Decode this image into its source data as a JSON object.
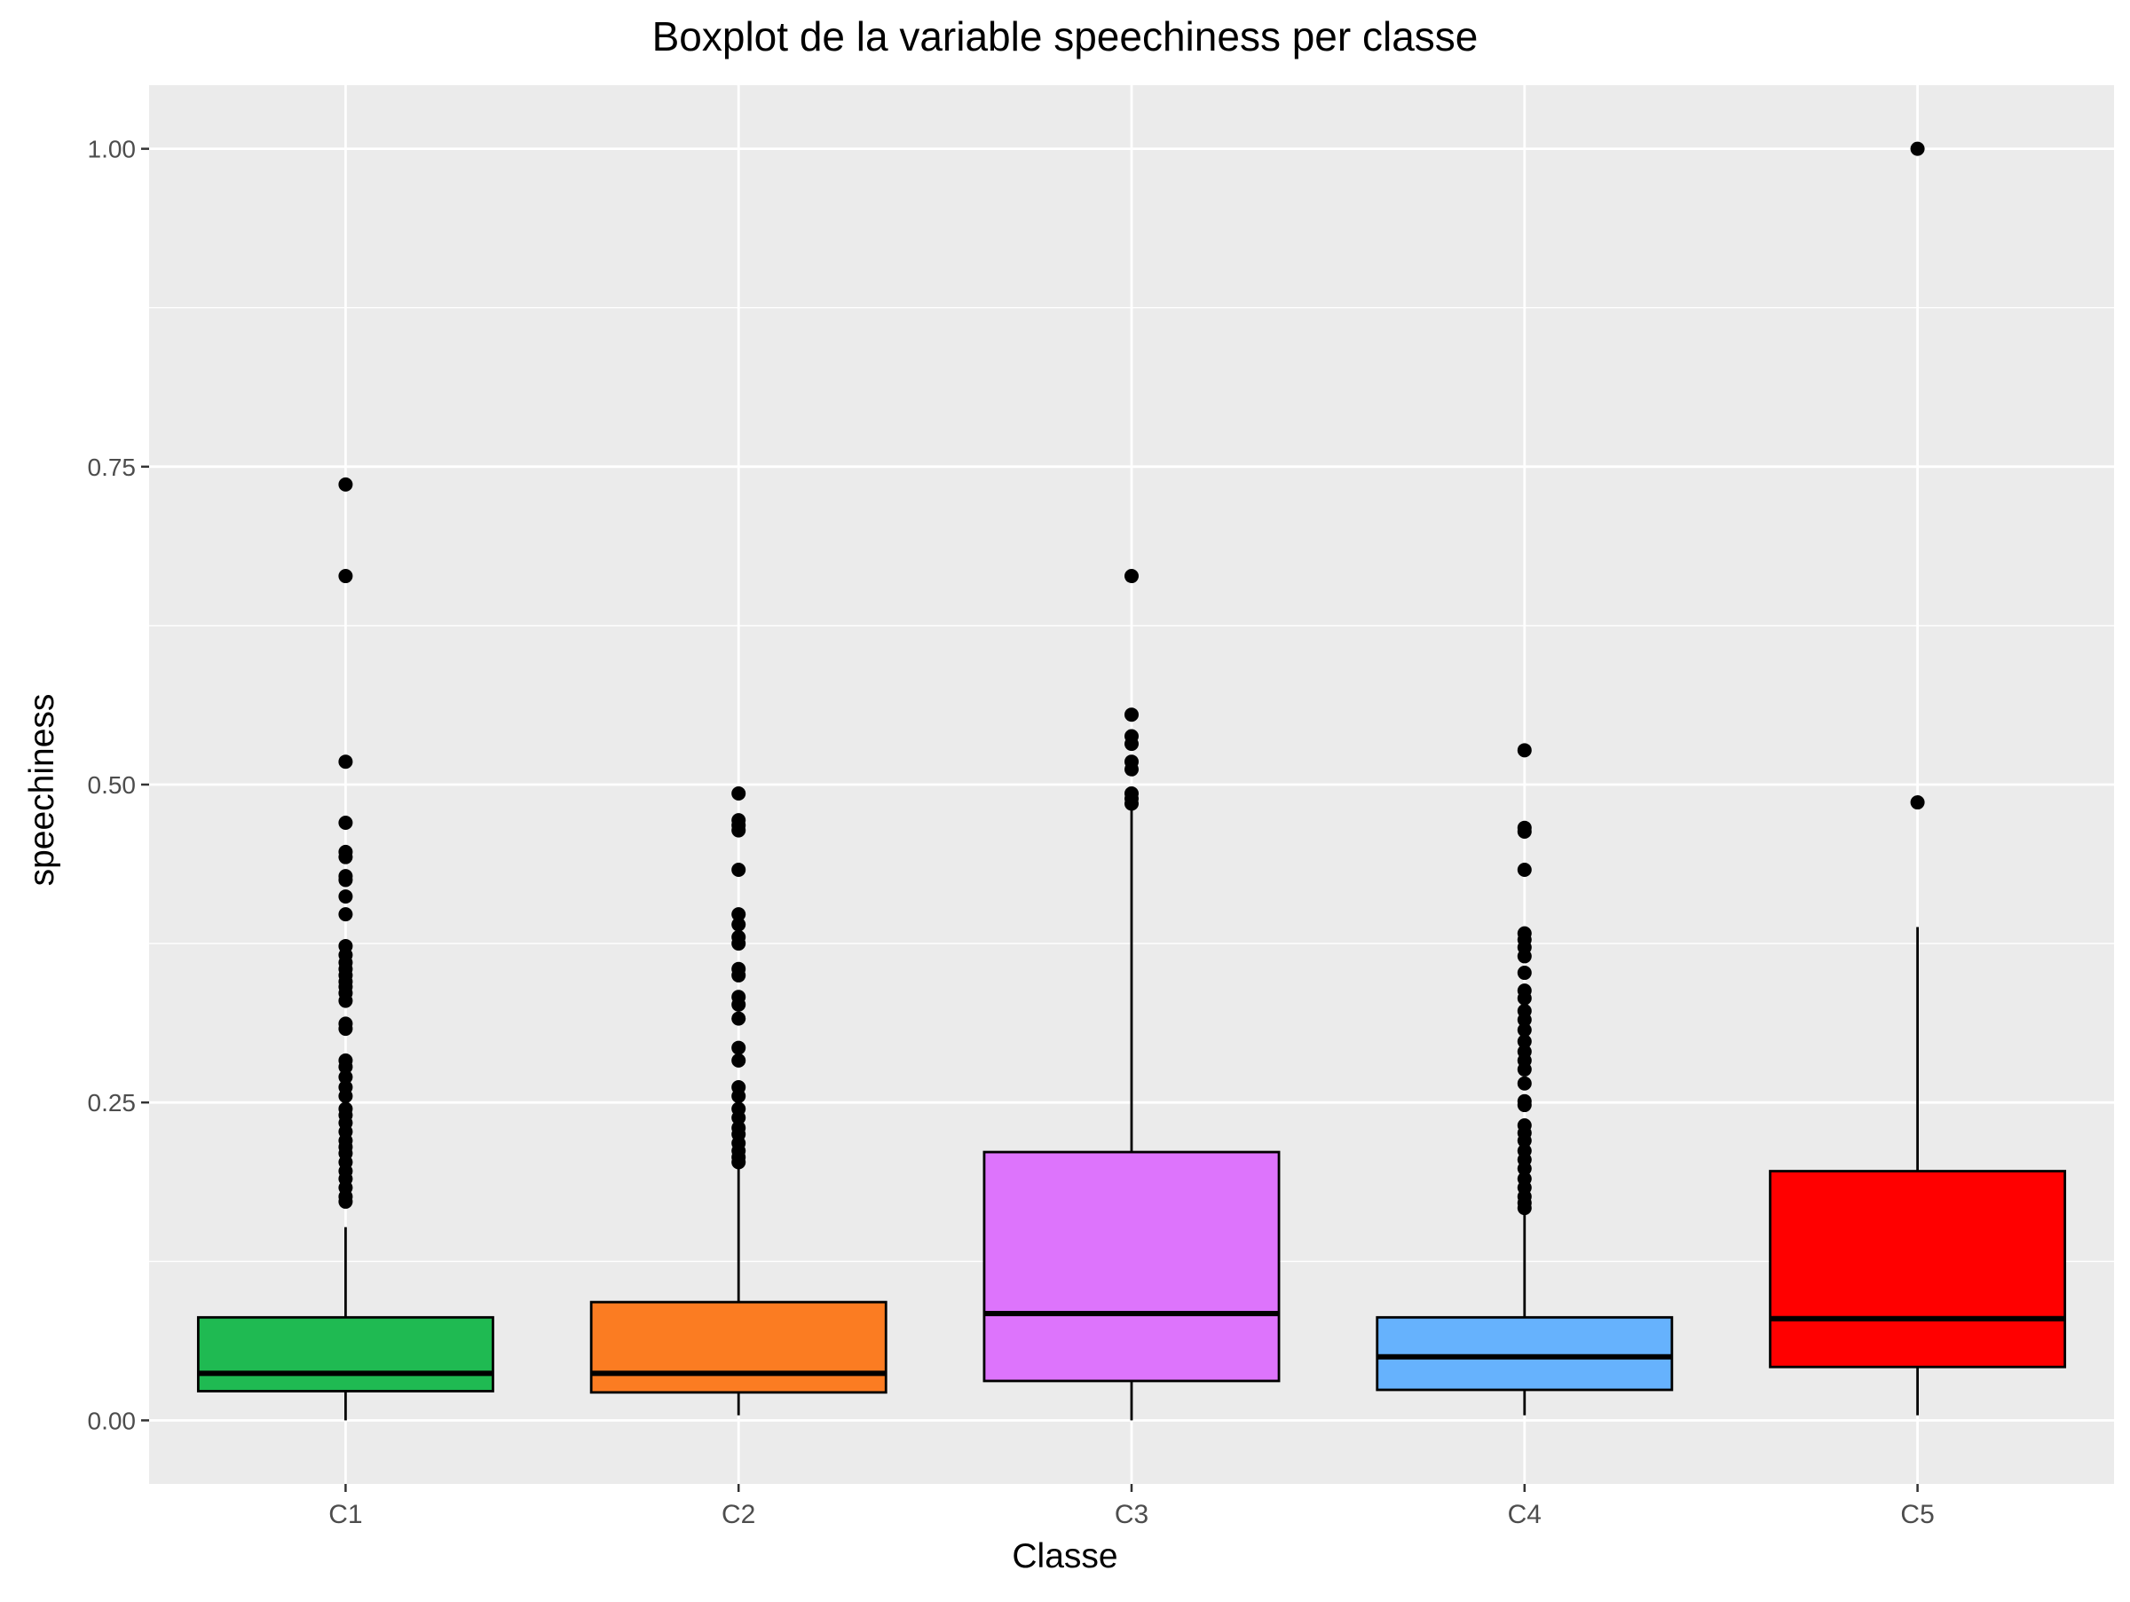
{
  "chart_data": {
    "type": "boxplot",
    "title": "Boxplot de la variable speechiness per classe",
    "xlabel": "Classe",
    "ylabel": "speechiness",
    "ylim": [
      -0.05,
      1.05
    ],
    "y_ticks": [
      "0.00",
      "0.25",
      "0.50",
      "0.75",
      "1.00"
    ],
    "y_tick_values": [
      0,
      0.25,
      0.5,
      0.75,
      1.0
    ],
    "grid": true,
    "legend": "none",
    "categories": [
      "C1",
      "C2",
      "C3",
      "C4",
      "C5"
    ],
    "boxes": [
      {
        "category": "C1",
        "color": "#1FBA52",
        "whisker_low": 0.0,
        "q1": 0.023,
        "median": 0.037,
        "q3": 0.081,
        "whisker_high": 0.152,
        "outliers": [
          0.736,
          0.664,
          0.518,
          0.47,
          0.447,
          0.443,
          0.428,
          0.425,
          0.412,
          0.398,
          0.373,
          0.366,
          0.36,
          0.355,
          0.35,
          0.345,
          0.341,
          0.336,
          0.33,
          0.312,
          0.308,
          0.283,
          0.278,
          0.27,
          0.262,
          0.255,
          0.245,
          0.24,
          0.234,
          0.227,
          0.22,
          0.215,
          0.21,
          0.203,
          0.196,
          0.19,
          0.183,
          0.176,
          0.172
        ]
      },
      {
        "category": "C2",
        "color": "#FB7C22",
        "whisker_low": 0.004,
        "q1": 0.022,
        "median": 0.037,
        "q3": 0.093,
        "whisker_high": 0.2,
        "outliers": [
          0.493,
          0.472,
          0.468,
          0.464,
          0.433,
          0.398,
          0.39,
          0.38,
          0.375,
          0.355,
          0.35,
          0.333,
          0.327,
          0.316,
          0.293,
          0.283,
          0.262,
          0.255,
          0.245,
          0.238,
          0.23,
          0.225,
          0.218,
          0.212,
          0.207,
          0.203
        ]
      },
      {
        "category": "C3",
        "color": "#DD74FC",
        "whisker_low": 0.0,
        "q1": 0.031,
        "median": 0.084,
        "q3": 0.211,
        "whisker_high": 0.48,
        "outliers": [
          0.664,
          0.555,
          0.538,
          0.532,
          0.518,
          0.512,
          0.493,
          0.489,
          0.485
        ]
      },
      {
        "category": "C4",
        "color": "#66B2FD",
        "whisker_low": 0.004,
        "q1": 0.024,
        "median": 0.05,
        "q3": 0.081,
        "whisker_high": 0.165,
        "outliers": [
          0.527,
          0.466,
          0.463,
          0.433,
          0.383,
          0.378,
          0.372,
          0.365,
          0.352,
          0.338,
          0.332,
          0.322,
          0.315,
          0.307,
          0.298,
          0.29,
          0.283,
          0.276,
          0.265,
          0.251,
          0.248,
          0.232,
          0.226,
          0.22,
          0.212,
          0.205,
          0.198,
          0.19,
          0.183,
          0.176,
          0.171,
          0.167
        ]
      },
      {
        "category": "C5",
        "color": "#FF0000",
        "whisker_low": 0.004,
        "q1": 0.042,
        "median": 0.08,
        "q3": 0.196,
        "whisker_high": 0.388,
        "outliers": [
          1.0,
          0.486
        ]
      }
    ]
  }
}
